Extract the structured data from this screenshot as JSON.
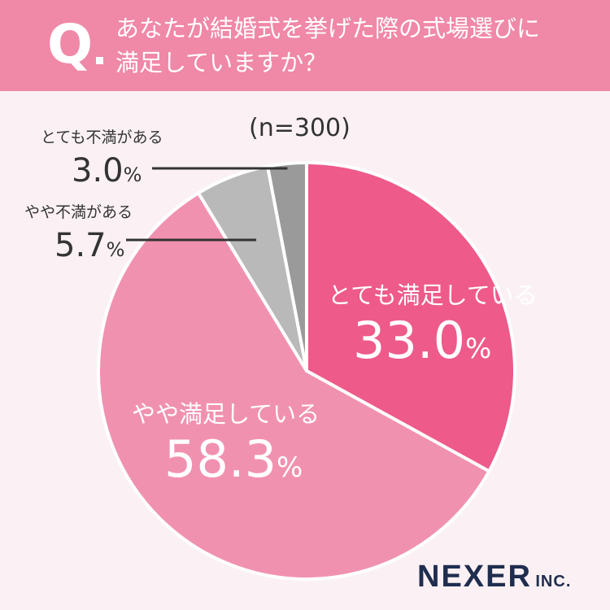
{
  "header": {
    "q_mark": "Q",
    "question_line1": "あなたが結婚式を挙げた際の式場選びに",
    "question_line2": "満足していますか？"
  },
  "sample_size": "(n=300)",
  "chart_data": {
    "type": "pie",
    "start": "top",
    "direction": "clockwise",
    "slices": [
      {
        "label": "とても満足している",
        "value": 33.0,
        "value_text": "33.0",
        "unit": "%",
        "color": "#ee5a8a"
      },
      {
        "label": "やや満足している",
        "value": 58.3,
        "value_text": "58.3",
        "unit": "%",
        "color": "#f191b0"
      },
      {
        "label": "やや不満がある",
        "value": 5.7,
        "value_text": "5.7",
        "unit": "%",
        "color": "#b9b9b9"
      },
      {
        "label": "とても不満がある",
        "value": 3.0,
        "value_text": "3.0",
        "unit": "%",
        "color": "#9a9a9a"
      }
    ]
  },
  "logo": {
    "main": "NEXER",
    "sub": "INC."
  }
}
